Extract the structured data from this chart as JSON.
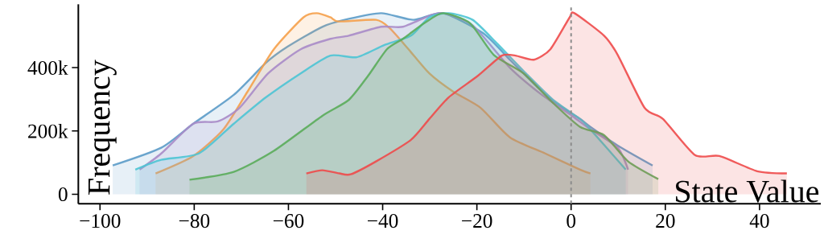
{
  "chart_data": {
    "type": "area",
    "xlabel": "State Value",
    "ylabel": "Frequency",
    "xlim": [
      -104.6,
      53
    ],
    "ylim": [
      -30000,
      600000
    ],
    "xticks": [
      {
        "value": -100,
        "label": "−100"
      },
      {
        "value": -80,
        "label": "−80"
      },
      {
        "value": -60,
        "label": "−60"
      },
      {
        "value": -40,
        "label": "−40"
      },
      {
        "value": -20,
        "label": "−20"
      },
      0,
      20,
      40
    ],
    "yticks": [
      0,
      {
        "value": 200000,
        "label": "200k"
      },
      {
        "value": 400000,
        "label": "400k"
      }
    ],
    "grid": false,
    "marker": "none",
    "line_style": "solid",
    "ref_lines": [
      {
        "axis": "x",
        "value": 0,
        "color": "#8c8c8c",
        "line_style": "dashed"
      }
    ],
    "series": [
      {
        "color": "#5b9bc8",
        "x": [
          -97.3,
          -87,
          -80.2,
          -71.6,
          -64.8,
          -60.2,
          -52.8,
          -47.2,
          -40.3,
          -33.5,
          -27.2,
          -18.6,
          -13,
          -7.2,
          -3.2,
          1.9,
          4.1,
          9.9,
          17.3
        ],
        "values": [
          91000,
          147000,
          223000,
          314000,
          415000,
          466000,
          529000,
          554000,
          572000,
          551000,
          572000,
          508000,
          425000,
          339000,
          288000,
          238000,
          213000,
          154000,
          91000
        ]
      },
      {
        "color": "#f5a04a",
        "x": [
          -88.2,
          -80.2,
          -73.8,
          -68.7,
          -63.1,
          -56.8,
          -54,
          -51.1,
          -49.4,
          -41.4,
          -38.6,
          -34.5,
          -30.1,
          -25,
          -19.2,
          -13,
          -5.5,
          1.9,
          4.1
        ],
        "values": [
          66000,
          121000,
          205000,
          324000,
          458000,
          559000,
          572000,
          559000,
          546000,
          551000,
          526000,
          458000,
          382000,
          324000,
          273000,
          180000,
          129000,
          78000,
          66000
        ]
      },
      {
        "color": "#a88bc8",
        "x": [
          -91.6,
          -87,
          -80.2,
          -75,
          -70.4,
          -64.3,
          -57.4,
          -51.1,
          -47.2,
          -40.3,
          -35.7,
          -30.1,
          -27.2,
          -20.9,
          -13,
          -6.2,
          0.2,
          4.1,
          9.9,
          12.1
        ],
        "values": [
          78000,
          129000,
          223000,
          230000,
          273000,
          382000,
          458000,
          491000,
          501000,
          529000,
          529000,
          564000,
          572000,
          534000,
          400000,
          314000,
          248000,
          205000,
          147000,
          78000
        ]
      },
      {
        "color": "#4dc4d4",
        "x": [
          -92.5,
          -87,
          -79,
          -71.6,
          -64.8,
          -57.4,
          -51.1,
          -45.5,
          -39.7,
          -34,
          -30.1,
          -26,
          -20.9,
          -15.7,
          -9.6,
          -3.8,
          1.9,
          4.1,
          11.6
        ],
        "values": [
          78000,
          109000,
          129000,
          223000,
          306000,
          382000,
          438000,
          433000,
          471000,
          501000,
          559000,
          572000,
          551000,
          476000,
          382000,
          298000,
          238000,
          205000,
          78000
        ]
      },
      {
        "color": "#5aac5a",
        "x": [
          -81,
          -71.6,
          -63.1,
          -52.8,
          -47.2,
          -43.1,
          -39.1,
          -35.7,
          -31.1,
          -27.2,
          -21.5,
          -16.4,
          -10.1,
          -3.8,
          1.9,
          7,
          12.1,
          18.5
        ],
        "values": [
          46000,
          71000,
          137000,
          248000,
          298000,
          374000,
          458000,
          491000,
          541000,
          572000,
          541000,
          440000,
          382000,
          288000,
          213000,
          187000,
          104000,
          48000
        ]
      },
      {
        "color": "#ee4a4a",
        "x": [
          -56.2,
          -52.8,
          -49.2,
          -46.8,
          -41.4,
          -34,
          -30.1,
          -26,
          -19.8,
          -14.7,
          -11.8,
          -7.9,
          -4.4,
          -0.3,
          0.7,
          7,
          9.9,
          15.6,
          19.5,
          26.3,
          31.5,
          39.5,
          45.8
        ],
        "values": [
          66000,
          76000,
          66000,
          63000,
          104000,
          172000,
          238000,
          306000,
          374000,
          438000,
          438000,
          425000,
          458000,
          559000,
          572000,
          501000,
          440000,
          273000,
          238000,
          124000,
          121000,
          73000,
          66000
        ]
      }
    ]
  }
}
